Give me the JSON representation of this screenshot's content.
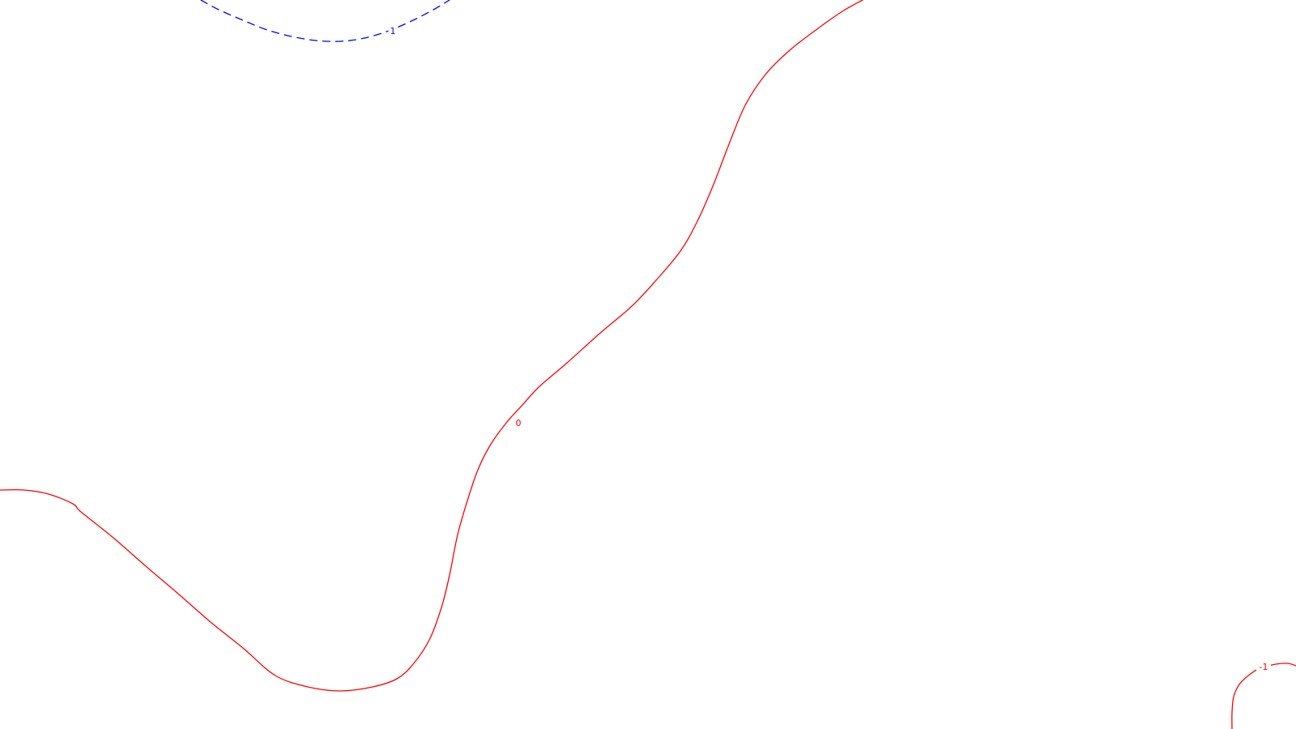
{
  "chart_data": {
    "type": "contour",
    "title": "",
    "xlabel": "",
    "ylabel": "",
    "grid": false,
    "legend": false,
    "axes_visible": false,
    "contours": [
      {
        "id": "contour-level-1-top",
        "level": 1,
        "label": "1",
        "color": "#0000ff",
        "style": "dashed",
        "points": [
          [
            248,
            0
          ],
          [
            270,
            12
          ],
          [
            300,
            25
          ],
          [
            330,
            37
          ],
          [
            360,
            45
          ],
          [
            390,
            50
          ],
          [
            420,
            51
          ],
          [
            450,
            47
          ],
          [
            480,
            38
          ],
          [
            510,
            25
          ],
          [
            535,
            12
          ],
          [
            555,
            0
          ]
        ],
        "label_at": [
          485,
          38
        ]
      },
      {
        "id": "contour-level-0",
        "level": 0,
        "label": "0",
        "color": "#ff0000",
        "style": "solid",
        "points": [
          [
            0,
            605
          ],
          [
            30,
            605
          ],
          [
            60,
            610
          ],
          [
            90,
            622
          ],
          [
            100,
            632
          ],
          [
            140,
            664
          ],
          [
            180,
            699
          ],
          [
            220,
            733
          ],
          [
            260,
            768
          ],
          [
            300,
            800
          ],
          [
            340,
            834
          ],
          [
            380,
            848
          ],
          [
            420,
            853
          ],
          [
            460,
            848
          ],
          [
            490,
            838
          ],
          [
            510,
            820
          ],
          [
            530,
            790
          ],
          [
            545,
            750
          ],
          [
            555,
            710
          ],
          [
            565,
            660
          ],
          [
            578,
            615
          ],
          [
            590,
            580
          ],
          [
            605,
            550
          ],
          [
            625,
            522
          ],
          [
            645,
            500
          ],
          [
            665,
            478
          ],
          [
            700,
            448
          ],
          [
            740,
            412
          ],
          [
            780,
            378
          ],
          [
            810,
            346
          ],
          [
            840,
            310
          ],
          [
            860,
            275
          ],
          [
            880,
            230
          ],
          [
            900,
            178
          ],
          [
            920,
            130
          ],
          [
            945,
            92
          ],
          [
            975,
            62
          ],
          [
            1010,
            35
          ],
          [
            1040,
            14
          ],
          [
            1065,
            0
          ]
        ],
        "label_at": [
          640,
          522
        ]
      },
      {
        "id": "contour-level-neg1-corner",
        "level": -1,
        "label": "-1",
        "color": "#ff0000",
        "style": "solid",
        "points": [
          [
            1521,
            900
          ],
          [
            1521,
            880
          ],
          [
            1523,
            860
          ],
          [
            1530,
            845
          ],
          [
            1540,
            835
          ],
          [
            1555,
            825
          ],
          [
            1575,
            820
          ],
          [
            1590,
            819
          ],
          [
            1600,
            822
          ]
        ],
        "label_at": [
          1560,
          823
        ]
      }
    ]
  }
}
